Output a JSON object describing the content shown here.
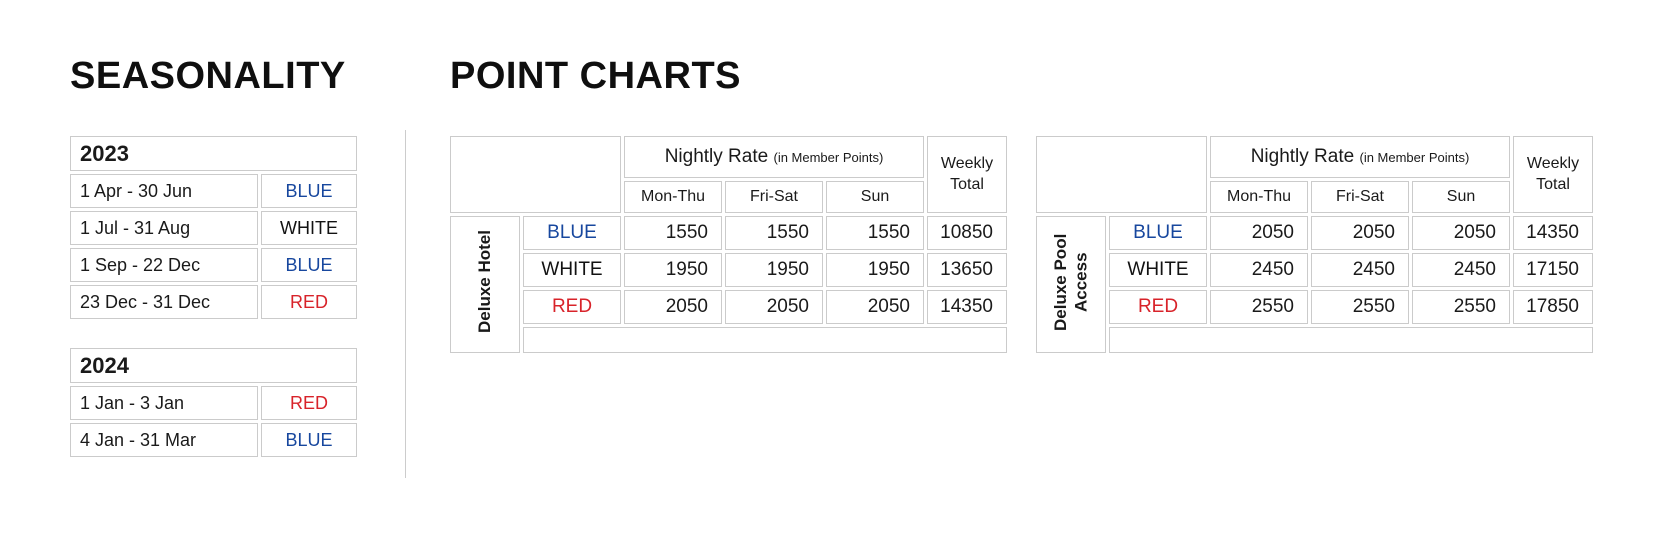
{
  "titles": {
    "seasonality": "SEASONALITY",
    "point_charts": "POINT CHARTS"
  },
  "colors": {
    "blue": "#17479E",
    "red": "#D8232A",
    "black": "#121212",
    "border": "#CBCBCB",
    "label-bg": "#D8D8D8",
    "divider": "#CCCCCC"
  },
  "seasonality": {
    "tables": [
      {
        "year": "2023",
        "rows": [
          {
            "dates": "1 Apr - 30 Jun",
            "season": "BLUE"
          },
          {
            "dates": "1 Jul - 31 Aug",
            "season": "WHITE"
          },
          {
            "dates": "1 Sep - 22 Dec",
            "season": "BLUE"
          },
          {
            "dates": "23 Dec - 31 Dec",
            "season": "RED"
          }
        ]
      },
      {
        "year": "2024",
        "rows": [
          {
            "dates": "1 Jan - 3 Jan",
            "season": "RED"
          },
          {
            "dates": "4 Jan - 31 Mar",
            "season": "BLUE"
          }
        ]
      }
    ]
  },
  "point_charts": {
    "header": {
      "nightly_rate": "Nightly Rate",
      "nightly_rate_sub": "(in Member Points)",
      "weekly_total": "Weekly Total",
      "day_columns": [
        "Mon-Thu",
        "Fri-Sat",
        "Sun"
      ]
    },
    "tables": [
      {
        "room": "Deluxe Hotel",
        "rows": [
          {
            "season": "BLUE",
            "rates": [
              "1550",
              "1550",
              "1550"
            ],
            "weekly_total": "10850"
          },
          {
            "season": "WHITE",
            "rates": [
              "1950",
              "1950",
              "1950"
            ],
            "weekly_total": "13650"
          },
          {
            "season": "RED",
            "rates": [
              "2050",
              "2050",
              "2050"
            ],
            "weekly_total": "14350"
          }
        ]
      },
      {
        "room": "Deluxe Pool Access",
        "rows": [
          {
            "season": "BLUE",
            "rates": [
              "2050",
              "2050",
              "2050"
            ],
            "weekly_total": "14350"
          },
          {
            "season": "WHITE",
            "rates": [
              "2450",
              "2450",
              "2450"
            ],
            "weekly_total": "17150"
          },
          {
            "season": "RED",
            "rates": [
              "2550",
              "2550",
              "2550"
            ],
            "weekly_total": "17850"
          }
        ]
      }
    ]
  }
}
